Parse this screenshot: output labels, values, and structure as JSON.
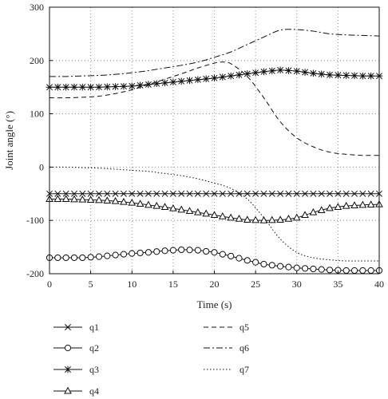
{
  "chart_data": {
    "type": "line",
    "xlabel": "Time (s)",
    "ylabel": "Joint angle (°)",
    "xlim": [
      0,
      40
    ],
    "ylim": [
      -200,
      300
    ],
    "xticks": [
      0,
      5,
      10,
      15,
      20,
      25,
      30,
      35,
      40
    ],
    "yticks": [
      -200,
      -100,
      0,
      100,
      200,
      300
    ],
    "grid": "dotted",
    "legend_placement": "below plot, two columns",
    "series": [
      {
        "name": "q1",
        "linestyle": "solid",
        "marker": "x",
        "x": [
          0,
          10,
          20,
          30,
          40
        ],
        "y": [
          -50,
          -50,
          -50,
          -50,
          -50
        ]
      },
      {
        "name": "q2",
        "linestyle": "solid",
        "marker": "circle",
        "x": [
          0,
          2,
          4,
          6,
          8,
          10,
          12,
          14,
          16,
          18,
          20,
          22,
          24,
          26,
          28,
          30,
          32,
          34,
          36,
          38,
          40
        ],
        "y": [
          -170,
          -170,
          -170,
          -168,
          -165,
          -162,
          -160,
          -157,
          -155,
          -156,
          -160,
          -167,
          -175,
          -182,
          -186,
          -189,
          -191,
          -193,
          -194,
          -194,
          -194
        ]
      },
      {
        "name": "q3",
        "linestyle": "solid",
        "marker": "asterisk",
        "x": [
          0,
          2,
          4,
          6,
          8,
          10,
          12,
          14,
          16,
          18,
          20,
          22,
          24,
          26,
          28,
          30,
          32,
          34,
          36,
          38,
          40
        ],
        "y": [
          150,
          150,
          150,
          150,
          151,
          152,
          155,
          158,
          161,
          164,
          167,
          171,
          175,
          179,
          182,
          180,
          176,
          173,
          172,
          171,
          171
        ]
      },
      {
        "name": "q4",
        "linestyle": "solid",
        "marker": "triangle",
        "x": [
          0,
          2,
          4,
          6,
          8,
          10,
          12,
          14,
          16,
          18,
          20,
          22,
          24,
          26,
          28,
          30,
          32,
          34,
          36,
          38,
          40
        ],
        "y": [
          -60,
          -60,
          -61,
          -62,
          -64,
          -67,
          -71,
          -75,
          -80,
          -85,
          -90,
          -95,
          -99,
          -100,
          -99,
          -95,
          -85,
          -77,
          -73,
          -71,
          -70
        ]
      },
      {
        "name": "q5",
        "linestyle": "dashed",
        "marker": "none",
        "x": [
          0,
          2,
          4,
          6,
          8,
          10,
          12,
          14,
          16,
          18,
          20,
          21,
          22,
          24,
          26,
          28,
          30,
          32,
          34,
          36,
          38,
          40
        ],
        "y": [
          130,
          130,
          131,
          133,
          138,
          145,
          155,
          165,
          175,
          186,
          195,
          197,
          194,
          170,
          130,
          85,
          55,
          38,
          28,
          24,
          22,
          22
        ]
      },
      {
        "name": "q6",
        "linestyle": "dashdot",
        "marker": "none",
        "x": [
          0,
          2,
          4,
          6,
          8,
          10,
          12,
          14,
          16,
          18,
          20,
          22,
          24,
          26,
          28,
          30,
          32,
          34,
          36,
          38,
          40
        ],
        "y": [
          170,
          170,
          171,
          172,
          174,
          177,
          181,
          186,
          191,
          197,
          206,
          216,
          230,
          244,
          257,
          258,
          255,
          250,
          248,
          247,
          246
        ]
      },
      {
        "name": "q7",
        "linestyle": "dotted",
        "marker": "none",
        "x": [
          0,
          2,
          4,
          6,
          8,
          10,
          12,
          14,
          16,
          18,
          20,
          22,
          24,
          26,
          28,
          30,
          32,
          34,
          36,
          38,
          40
        ],
        "y": [
          0,
          0,
          -1,
          -2,
          -4,
          -6,
          -8,
          -12,
          -16,
          -22,
          -30,
          -40,
          -60,
          -95,
          -135,
          -160,
          -170,
          -174,
          -176,
          -176,
          -176
        ]
      }
    ]
  }
}
